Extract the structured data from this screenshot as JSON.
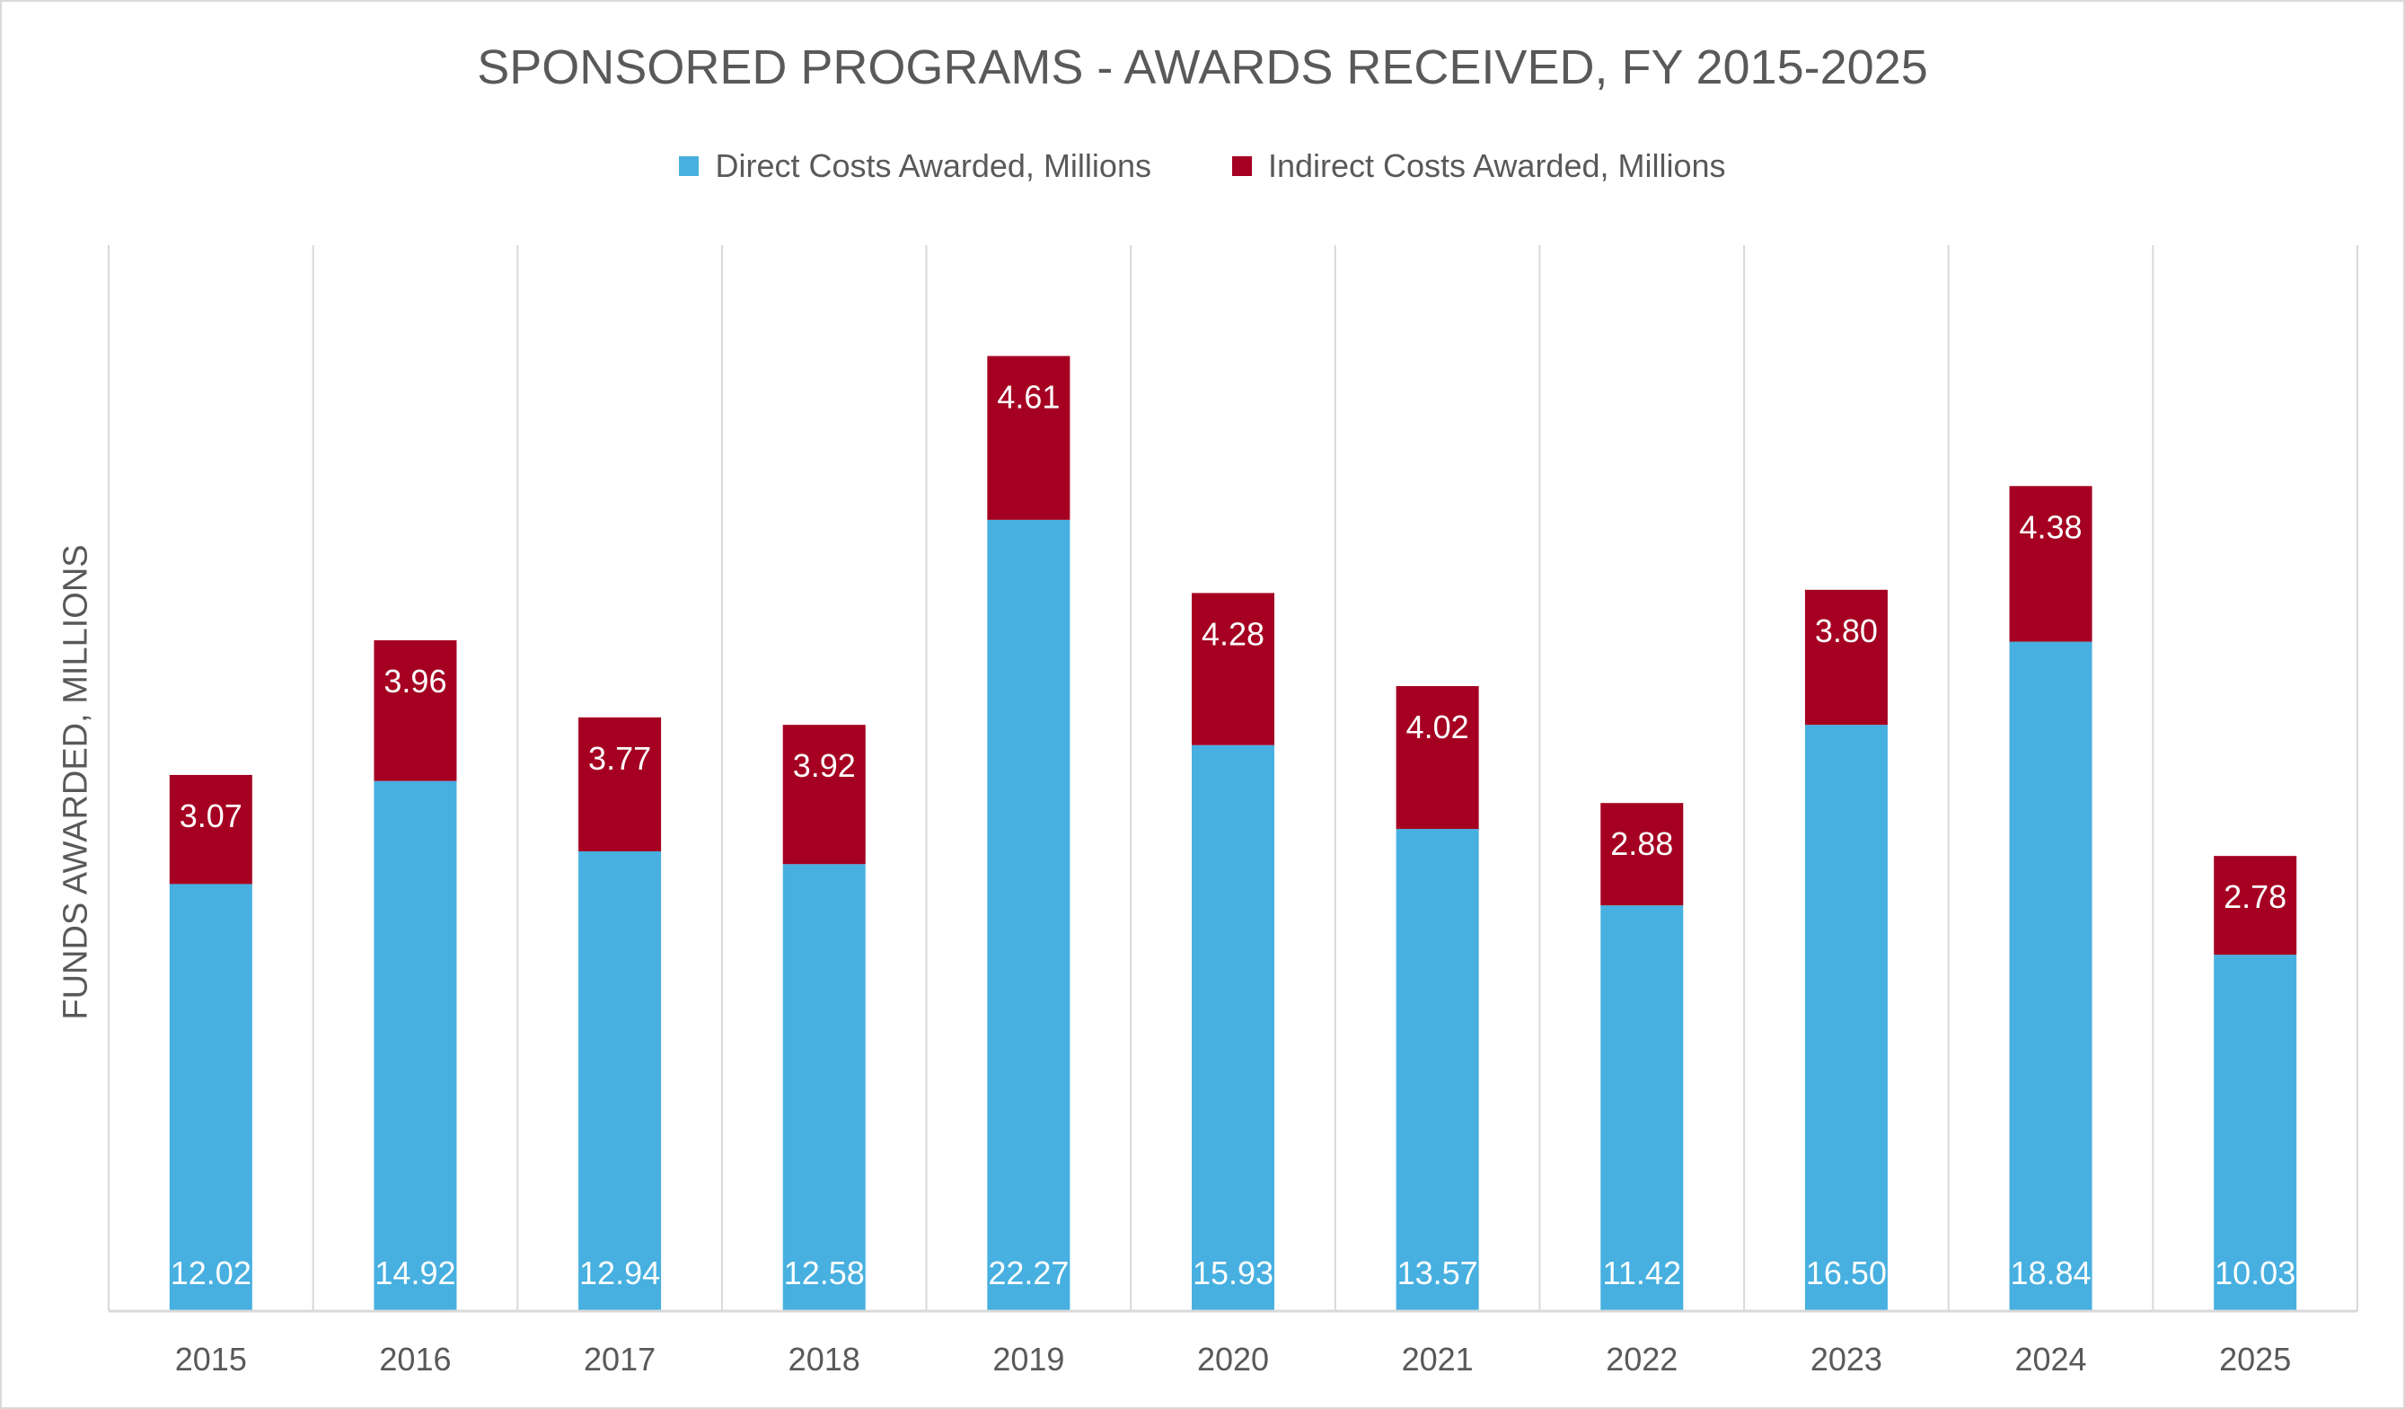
{
  "chart_data": {
    "type": "bar",
    "stacked": true,
    "title": "SPONSORED PROGRAMS - AWARDS RECEIVED, FY 2015-2025",
    "xlabel": "",
    "ylabel": "FUNDS AWARDED, MILLIONS",
    "ylim": [
      0,
      30
    ],
    "grid": "vertical category separators",
    "legend": "top",
    "categories": [
      "2015",
      "2016",
      "2017",
      "2018",
      "2019",
      "2020",
      "2021",
      "2022",
      "2023",
      "2024",
      "2025"
    ],
    "series": [
      {
        "name": "Direct Costs Awarded, Millions",
        "color": "#47b0e0",
        "values": [
          12.02,
          14.92,
          12.94,
          12.58,
          22.27,
          15.93,
          13.57,
          11.42,
          16.5,
          18.84,
          10.03
        ]
      },
      {
        "name": "Indirect Costs Awarded, Millions",
        "color": "#a50021",
        "values": [
          3.07,
          3.96,
          3.77,
          3.92,
          4.61,
          4.28,
          4.02,
          2.88,
          3.8,
          4.38,
          2.78
        ]
      }
    ]
  }
}
